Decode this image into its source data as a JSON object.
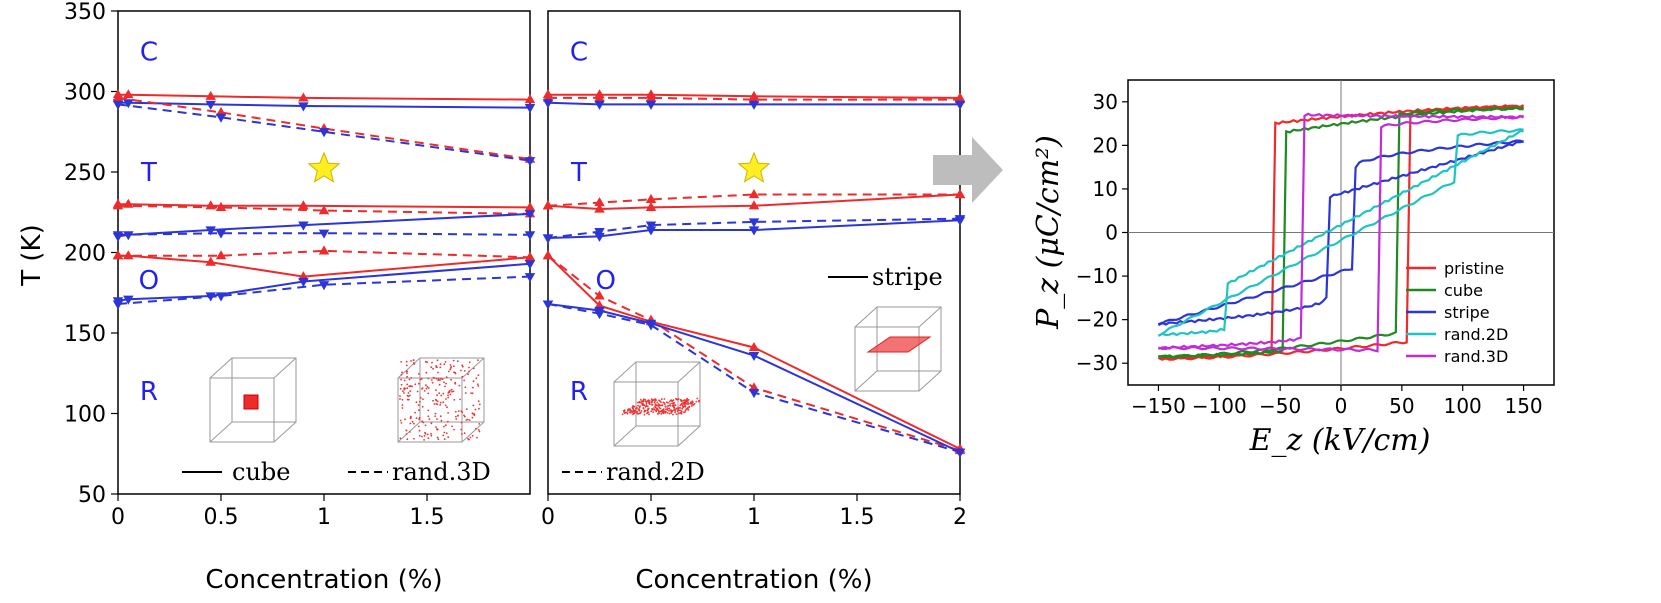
{
  "colors": {
    "red": "#ee2a2a",
    "blue": "#2b35d8",
    "green": "#1f8a1f",
    "cyan": "#1ec4c4",
    "magenta": "#c22bd8",
    "star": "#ffee22",
    "arrow": "#bdbdbd",
    "phase_label": "#2222ee"
  },
  "chart_data": [
    {
      "type": "line",
      "panel": "left",
      "ylabel": "T (K)",
      "xlabel": "Concentration (%)",
      "xlim": [
        0,
        2
      ],
      "ylim": [
        50,
        350
      ],
      "xticks": [
        0,
        0.5,
        1,
        1.5
      ],
      "xtick_labels": [
        "0",
        "0.5",
        "1",
        "1.5"
      ],
      "yticks": [
        50,
        100,
        150,
        200,
        250,
        300,
        350
      ],
      "ytick_labels": [
        "50",
        "100",
        "150",
        "200",
        "250",
        "300",
        "350"
      ],
      "phase_labels": [
        {
          "text": "C",
          "x": 0.15,
          "y": 325
        },
        {
          "text": "T",
          "x": 0.15,
          "y": 250
        },
        {
          "text": "O",
          "x": 0.15,
          "y": 183
        },
        {
          "text": "R",
          "x": 0.15,
          "y": 114
        }
      ],
      "star": {
        "x": 1.0,
        "y": 252
      },
      "series": [
        {
          "name": "cube C-T heating",
          "color": "red",
          "dash": false,
          "marker": "up",
          "x": [
            0,
            0.05,
            0.45,
            0.9,
            2.0
          ],
          "y": [
            298,
            298,
            297,
            296,
            295
          ]
        },
        {
          "name": "cube C-T cooling",
          "color": "blue",
          "dash": false,
          "marker": "down",
          "x": [
            0,
            0.05,
            0.45,
            0.9,
            2.0
          ],
          "y": [
            293,
            293,
            292,
            291,
            290
          ]
        },
        {
          "name": "rand.3D C-T heating",
          "color": "red",
          "dash": true,
          "marker": "up",
          "x": [
            0,
            0.5,
            1.0,
            2.0
          ],
          "y": [
            296,
            287,
            277,
            258
          ]
        },
        {
          "name": "rand.3D C-T cooling",
          "color": "blue",
          "dash": true,
          "marker": "down",
          "x": [
            0,
            0.5,
            1.0,
            2.0
          ],
          "y": [
            292,
            284,
            275,
            257
          ]
        },
        {
          "name": "cube T-O heating",
          "color": "red",
          "dash": false,
          "marker": "up",
          "x": [
            0,
            0.05,
            0.45,
            0.9,
            2.0
          ],
          "y": [
            230,
            230,
            229,
            229,
            228
          ]
        },
        {
          "name": "rand.3D T-O heating",
          "color": "red",
          "dash": true,
          "marker": "up",
          "x": [
            0,
            0.5,
            1.0,
            2.0
          ],
          "y": [
            229,
            228,
            226,
            224
          ]
        },
        {
          "name": "cube T-O cooling",
          "color": "blue",
          "dash": false,
          "marker": "down",
          "x": [
            0,
            0.05,
            0.45,
            0.9,
            2.0
          ],
          "y": [
            210,
            211,
            214,
            217,
            224
          ]
        },
        {
          "name": "rand.3D T-O cooling",
          "color": "blue",
          "dash": true,
          "marker": "down",
          "x": [
            0,
            0.5,
            1.0,
            2.0
          ],
          "y": [
            211,
            212,
            212,
            211
          ]
        },
        {
          "name": "cube O-R heating",
          "color": "red",
          "dash": false,
          "marker": "up",
          "x": [
            0,
            0.05,
            0.45,
            0.9,
            2.0
          ],
          "y": [
            198,
            198,
            194,
            185,
            197
          ]
        },
        {
          "name": "rand.3D O-R heating",
          "color": "red",
          "dash": true,
          "marker": "up",
          "x": [
            0,
            0.5,
            1.0,
            2.0
          ],
          "y": [
            198,
            198,
            201,
            197
          ]
        },
        {
          "name": "cube O-R cooling",
          "color": "blue",
          "dash": false,
          "marker": "down",
          "x": [
            0,
            0.05,
            0.45,
            0.9,
            2.0
          ],
          "y": [
            170,
            171,
            173,
            182,
            193
          ]
        },
        {
          "name": "rand.3D O-R cooling",
          "color": "blue",
          "dash": true,
          "marker": "down",
          "x": [
            0,
            0.5,
            1.0,
            2.0
          ],
          "y": [
            168,
            173,
            180,
            185
          ]
        }
      ],
      "legend": [
        {
          "label": "cube",
          "dash": false
        },
        {
          "label": "rand.3D",
          "dash": true
        }
      ]
    },
    {
      "type": "line",
      "panel": "middle",
      "xlabel": "Concentration (%)",
      "xlim": [
        0,
        2
      ],
      "ylim": [
        50,
        350
      ],
      "xticks": [
        0,
        0.5,
        1,
        1.5,
        2
      ],
      "xtick_labels": [
        "0",
        "0.5",
        "1",
        "1.5",
        "2"
      ],
      "phase_labels": [
        {
          "text": "C",
          "x": 0.15,
          "y": 325
        },
        {
          "text": "T",
          "x": 0.15,
          "y": 250
        },
        {
          "text": "O",
          "x": 0.28,
          "y": 183
        },
        {
          "text": "R",
          "x": 0.15,
          "y": 114
        }
      ],
      "star": {
        "x": 1.0,
        "y": 252
      },
      "series": [
        {
          "name": "stripe C-T heating",
          "color": "red",
          "dash": false,
          "marker": "up",
          "x": [
            0,
            0.25,
            0.5,
            1.0,
            2.0
          ],
          "y": [
            298,
            298,
            298,
            297,
            296
          ]
        },
        {
          "name": "rand.2D C-T heating",
          "color": "red",
          "dash": true,
          "marker": "up",
          "x": [
            0,
            0.25,
            0.5,
            1.0,
            2.0
          ],
          "y": [
            296,
            296,
            296,
            295,
            295
          ]
        },
        {
          "name": "stripe C-T cooling",
          "color": "blue",
          "dash": false,
          "marker": "down",
          "x": [
            0,
            0.25,
            0.5,
            1.0,
            2.0
          ],
          "y": [
            293,
            292,
            292,
            292,
            292
          ]
        },
        {
          "name": "stripe T-O heating",
          "color": "red",
          "dash": false,
          "marker": "up",
          "x": [
            0,
            0.25,
            0.5,
            1.0,
            2.0
          ],
          "y": [
            229,
            227,
            228,
            229,
            236
          ]
        },
        {
          "name": "rand.2D T-O heating",
          "color": "red",
          "dash": true,
          "marker": "up",
          "x": [
            0,
            0.25,
            0.5,
            1.0,
            2.0
          ],
          "y": [
            229,
            231,
            233,
            236,
            236
          ]
        },
        {
          "name": "stripe T-O cooling",
          "color": "blue",
          "dash": false,
          "marker": "down",
          "x": [
            0,
            0.25,
            0.5,
            1.0,
            2.0
          ],
          "y": [
            209,
            210,
            214,
            214,
            220
          ]
        },
        {
          "name": "rand.2D T-O cooling",
          "color": "blue",
          "dash": true,
          "marker": "down",
          "x": [
            0,
            0.25,
            0.5,
            1.0,
            2.0
          ],
          "y": [
            209,
            213,
            217,
            219,
            221
          ]
        },
        {
          "name": "stripe O-R heating",
          "color": "red",
          "dash": false,
          "marker": "up",
          "x": [
            0,
            0.25,
            0.5,
            1.0,
            2.0
          ],
          "y": [
            198,
            167,
            157,
            141,
            78
          ]
        },
        {
          "name": "rand.2D O-R heating",
          "color": "red",
          "dash": true,
          "marker": "up",
          "x": [
            0,
            0.25,
            0.5,
            1.0,
            2.0
          ],
          "y": [
            198,
            173,
            158,
            116,
            77
          ]
        },
        {
          "name": "stripe O-R cooling",
          "color": "blue",
          "dash": false,
          "marker": "down",
          "x": [
            0,
            0.25,
            0.5,
            1.0,
            2.0
          ],
          "y": [
            168,
            164,
            156,
            136,
            76
          ]
        },
        {
          "name": "rand.2D O-R cooling",
          "color": "blue",
          "dash": true,
          "marker": "down",
          "x": [
            0,
            0.25,
            0.5,
            1.0,
            2.0
          ],
          "y": [
            168,
            162,
            155,
            113,
            76
          ]
        }
      ],
      "legend": [
        {
          "label": "stripe",
          "dash": false
        },
        {
          "label": "rand.2D",
          "dash": true
        }
      ]
    },
    {
      "type": "line",
      "panel": "right",
      "ylabel": "P_z (μC/cm²)",
      "xlabel": "E_z (kV/cm)",
      "xlim": [
        -175,
        175
      ],
      "ylim": [
        -35,
        35
      ],
      "xticks": [
        -150,
        -100,
        -50,
        0,
        50,
        100,
        150
      ],
      "xtick_labels": [
        "−150",
        "−100",
        "−50",
        "0",
        "50",
        "100",
        "150"
      ],
      "yticks": [
        -30,
        -20,
        -10,
        0,
        10,
        20,
        30
      ],
      "ytick_labels": [
        "−30",
        "−20",
        "−10",
        "0",
        "10",
        "20",
        "30"
      ],
      "series": [
        {
          "name": "pristine",
          "color": "red",
          "coercive": 57,
          "jump_low": 22,
          "jump_high": 27,
          "p_sat": 29,
          "p_low": -25
        },
        {
          "name": "cube",
          "color": "green",
          "coercive": 47,
          "jump_low": 20,
          "jump_high": 27,
          "p_sat": 28.5,
          "p_low": -23
        },
        {
          "name": "stripe",
          "color": "blue",
          "coercive": 12,
          "jump_low": 5,
          "jump_high": 15,
          "p_sat": 21,
          "p_low": -21
        },
        {
          "name": "rand.2D",
          "color": "cyan",
          "coercive": 95,
          "jump_low": 18,
          "jump_high": 22,
          "p_sat": 23.5,
          "p_low": -24
        },
        {
          "name": "rand.3D",
          "color": "magenta",
          "coercive": 32,
          "jump_low": 20,
          "jump_high": 24,
          "p_sat": 26.5,
          "p_low": -27
        }
      ],
      "legend_position": "bottom-right"
    }
  ]
}
